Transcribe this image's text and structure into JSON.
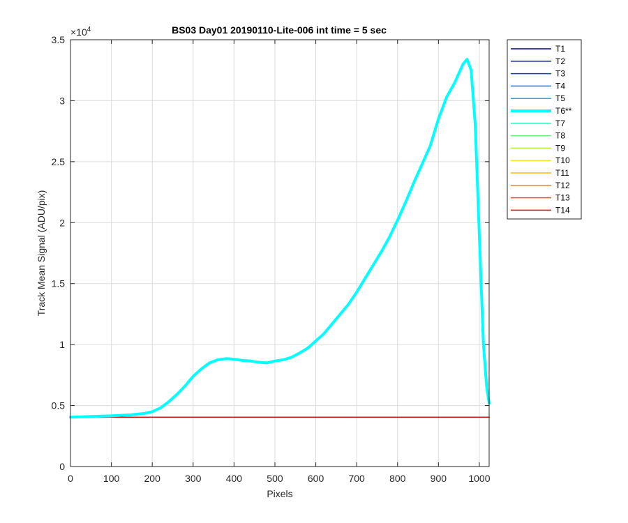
{
  "chart_data": {
    "type": "line",
    "title": "BS03 Day01 20190110-Lite-006 int time = 5 sec",
    "xlabel": "Pixels",
    "ylabel": "Track Mean Signal (ADU/pix)",
    "xlim": [
      0,
      1024
    ],
    "ylim": [
      0,
      35000
    ],
    "xticks": [
      0,
      100,
      200,
      300,
      400,
      500,
      600,
      700,
      800,
      900,
      1000
    ],
    "yticks": [
      0,
      5000,
      10000,
      15000,
      20000,
      25000,
      30000,
      35000
    ],
    "ytick_labels": [
      "0",
      "0.5",
      "1",
      "1.5",
      "2",
      "2.5",
      "3",
      "3.5"
    ],
    "y_exponent_base": "×10",
    "y_exponent_power": "4",
    "grid": true,
    "legend_position": "outside-top-right",
    "series": [
      {
        "name": "T1",
        "color": "#00008f",
        "width": 1.5,
        "x": [
          0,
          1024
        ],
        "y": [
          4050,
          4050
        ]
      },
      {
        "name": "T2",
        "color": "#0014c8",
        "width": 1.5,
        "x": [
          0,
          1024
        ],
        "y": [
          4050,
          4050
        ]
      },
      {
        "name": "T3",
        "color": "#0a3cdc",
        "width": 1.5,
        "x": [
          0,
          1024
        ],
        "y": [
          4050,
          4050
        ]
      },
      {
        "name": "T4",
        "color": "#1e78e6",
        "width": 1.5,
        "x": [
          0,
          1024
        ],
        "y": [
          4050,
          4050
        ]
      },
      {
        "name": "T5",
        "color": "#28a8f0",
        "width": 1.5,
        "x": [
          0,
          1024
        ],
        "y": [
          4050,
          4050
        ]
      },
      {
        "name": "T6**",
        "color": "#00ffff",
        "width": 4,
        "x": [
          0,
          50,
          100,
          150,
          180,
          200,
          220,
          240,
          260,
          280,
          300,
          320,
          340,
          360,
          380,
          400,
          420,
          440,
          460,
          480,
          500,
          520,
          540,
          560,
          580,
          600,
          620,
          640,
          660,
          680,
          700,
          720,
          740,
          760,
          780,
          800,
          820,
          840,
          860,
          880,
          900,
          920,
          940,
          960,
          970,
          980,
          990,
          1000,
          1010,
          1018,
          1024
        ],
        "y": [
          4050,
          4100,
          4150,
          4250,
          4350,
          4500,
          4800,
          5300,
          5900,
          6600,
          7400,
          8000,
          8500,
          8750,
          8850,
          8800,
          8700,
          8650,
          8550,
          8500,
          8650,
          8750,
          8950,
          9300,
          9700,
          10300,
          10900,
          11700,
          12500,
          13300,
          14300,
          15400,
          16500,
          17600,
          18800,
          20200,
          21700,
          23300,
          24800,
          26300,
          28500,
          30300,
          31500,
          33000,
          33400,
          32500,
          28000,
          19000,
          10000,
          6500,
          5200
        ]
      },
      {
        "name": "T7",
        "color": "#3ce6b4",
        "width": 1.5,
        "x": [
          0,
          1024
        ],
        "y": [
          4050,
          4050
        ]
      },
      {
        "name": "T8",
        "color": "#64f07d",
        "width": 1.5,
        "x": [
          0,
          1024
        ],
        "y": [
          4050,
          4050
        ]
      },
      {
        "name": "T9",
        "color": "#b4f032",
        "width": 1.5,
        "x": [
          0,
          1024
        ],
        "y": [
          4050,
          4050
        ]
      },
      {
        "name": "T10",
        "color": "#fae614",
        "width": 1.5,
        "x": [
          0,
          1024
        ],
        "y": [
          4050,
          4050
        ]
      },
      {
        "name": "T11",
        "color": "#f5b914",
        "width": 1.5,
        "x": [
          0,
          1024
        ],
        "y": [
          4050,
          4050
        ]
      },
      {
        "name": "T12",
        "color": "#f5821e",
        "width": 1.5,
        "x": [
          0,
          1024
        ],
        "y": [
          4050,
          4050
        ]
      },
      {
        "name": "T13",
        "color": "#f04b1e",
        "width": 1.5,
        "x": [
          0,
          1024
        ],
        "y": [
          4050,
          4050
        ]
      },
      {
        "name": "T14",
        "color": "#d21414",
        "width": 1.5,
        "x": [
          0,
          1024
        ],
        "y": [
          4050,
          4050
        ]
      }
    ]
  }
}
